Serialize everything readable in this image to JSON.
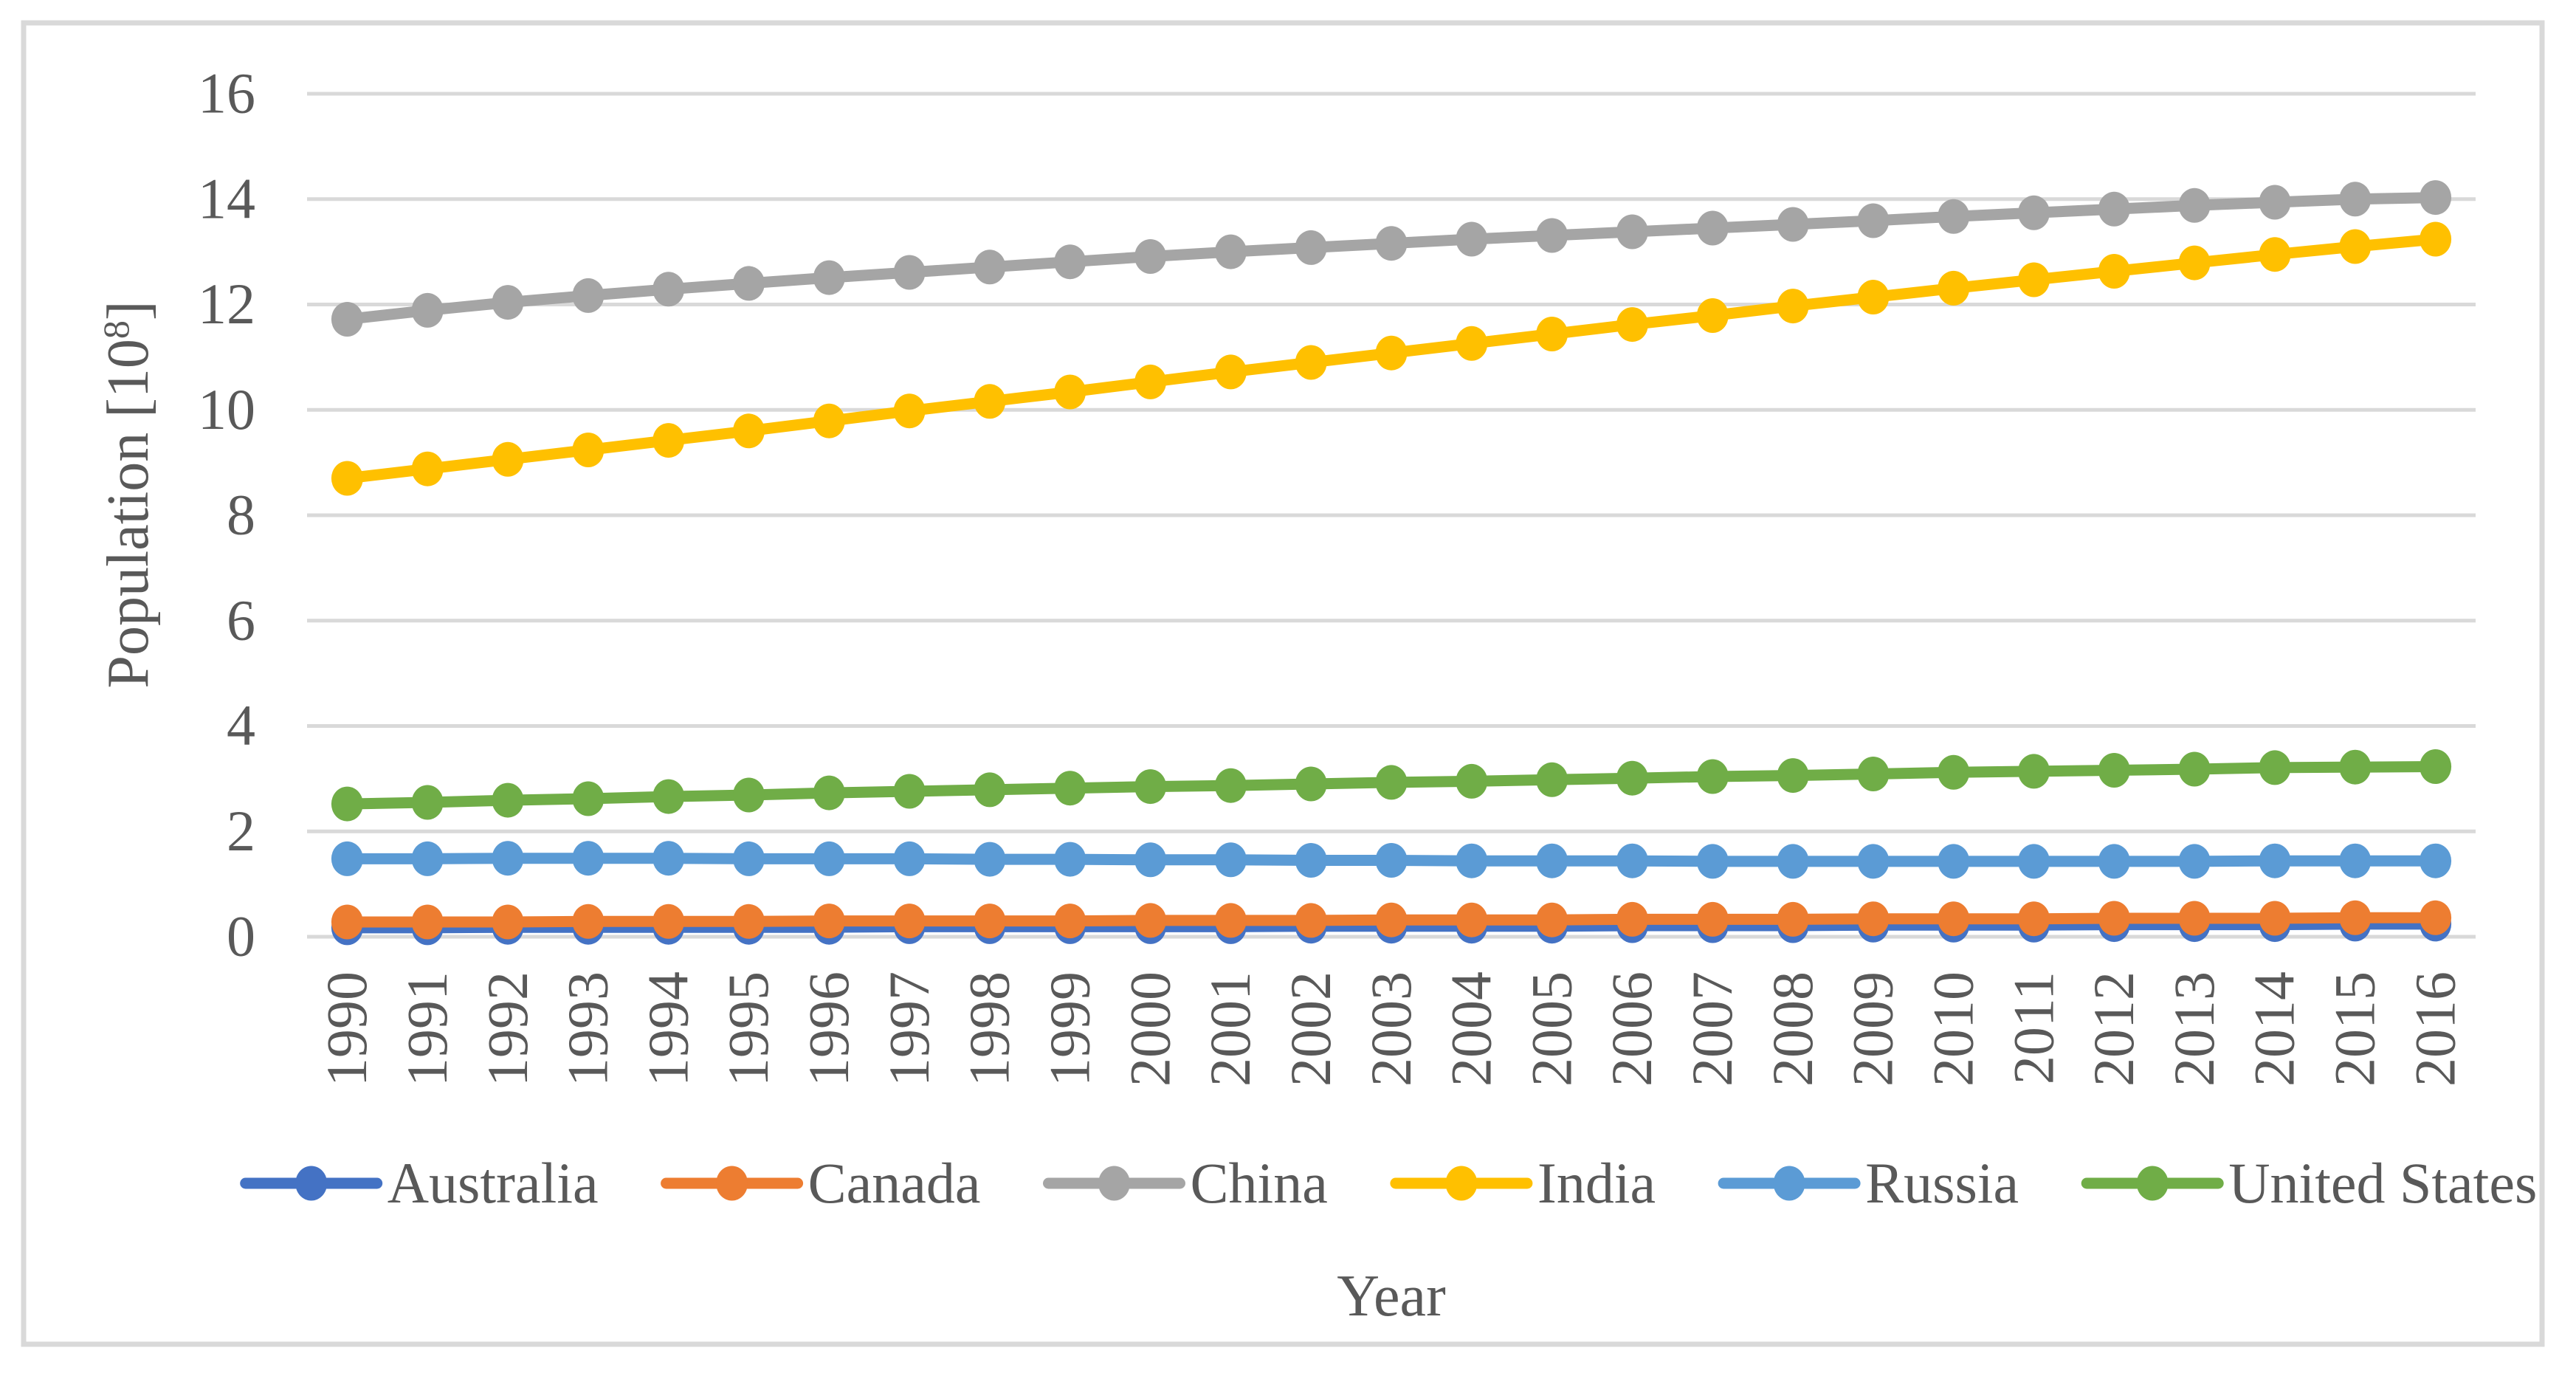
{
  "figure": {
    "background": "#FFFFFF",
    "border_color": "#D9D9D9",
    "grid_color": "#D9D9D9",
    "text_color": "#595959"
  },
  "chart_data": {
    "type": "line",
    "xlabel": "Year",
    "ylabel": "Population [10⁸]",
    "ylabel_parts": {
      "base": "Population [10",
      "superscript": "8",
      "close": "]"
    },
    "ylim": [
      0,
      16
    ],
    "yticks": [
      0,
      2,
      4,
      6,
      8,
      10,
      12,
      14,
      16
    ],
    "grid": true,
    "legend_position": "bottom",
    "marker": "circle",
    "categories": [
      "1990",
      "1991",
      "1992",
      "1993",
      "1994",
      "1995",
      "1996",
      "1997",
      "1998",
      "1999",
      "2000",
      "2001",
      "2002",
      "2003",
      "2004",
      "2005",
      "2006",
      "2007",
      "2008",
      "2009",
      "2010",
      "2011",
      "2012",
      "2013",
      "2014",
      "2015",
      "2016"
    ],
    "series": [
      {
        "name": "Australia",
        "color": "#4472C4",
        "values": [
          0.17,
          0.17,
          0.18,
          0.18,
          0.18,
          0.18,
          0.18,
          0.19,
          0.19,
          0.19,
          0.19,
          0.19,
          0.2,
          0.2,
          0.2,
          0.2,
          0.21,
          0.21,
          0.21,
          0.22,
          0.22,
          0.22,
          0.23,
          0.23,
          0.23,
          0.24,
          0.24
        ]
      },
      {
        "name": "Canada",
        "color": "#ED7D31",
        "values": [
          0.28,
          0.28,
          0.28,
          0.29,
          0.29,
          0.29,
          0.3,
          0.3,
          0.3,
          0.3,
          0.31,
          0.31,
          0.31,
          0.32,
          0.32,
          0.32,
          0.33,
          0.33,
          0.33,
          0.34,
          0.34,
          0.34,
          0.35,
          0.35,
          0.35,
          0.36,
          0.36
        ]
      },
      {
        "name": "China",
        "color": "#A5A5A5",
        "values": [
          11.72,
          11.89,
          12.04,
          12.17,
          12.29,
          12.4,
          12.51,
          12.61,
          12.71,
          12.81,
          12.91,
          13.0,
          13.08,
          13.16,
          13.24,
          13.31,
          13.38,
          13.45,
          13.52,
          13.59,
          13.67,
          13.74,
          13.81,
          13.88,
          13.94,
          14.0,
          14.03
        ]
      },
      {
        "name": "India",
        "color": "#FFC000",
        "values": [
          8.7,
          8.88,
          9.06,
          9.24,
          9.42,
          9.6,
          9.79,
          9.98,
          10.16,
          10.34,
          10.53,
          10.72,
          10.9,
          11.08,
          11.26,
          11.44,
          11.62,
          11.79,
          11.97,
          12.14,
          12.31,
          12.47,
          12.63,
          12.79,
          12.95,
          13.1,
          13.24
        ]
      },
      {
        "name": "Russia",
        "color": "#5B9BD5",
        "values": [
          1.48,
          1.48,
          1.49,
          1.49,
          1.49,
          1.48,
          1.48,
          1.48,
          1.47,
          1.47,
          1.46,
          1.46,
          1.45,
          1.45,
          1.44,
          1.44,
          1.44,
          1.43,
          1.43,
          1.43,
          1.43,
          1.43,
          1.43,
          1.43,
          1.44,
          1.44,
          1.44
        ]
      },
      {
        "name": "United States",
        "color": "#70AD47",
        "values": [
          2.52,
          2.55,
          2.59,
          2.62,
          2.66,
          2.69,
          2.73,
          2.76,
          2.79,
          2.82,
          2.85,
          2.87,
          2.9,
          2.93,
          2.95,
          2.98,
          3.01,
          3.04,
          3.06,
          3.09,
          3.12,
          3.14,
          3.16,
          3.18,
          3.21,
          3.22,
          3.23
        ]
      }
    ]
  }
}
